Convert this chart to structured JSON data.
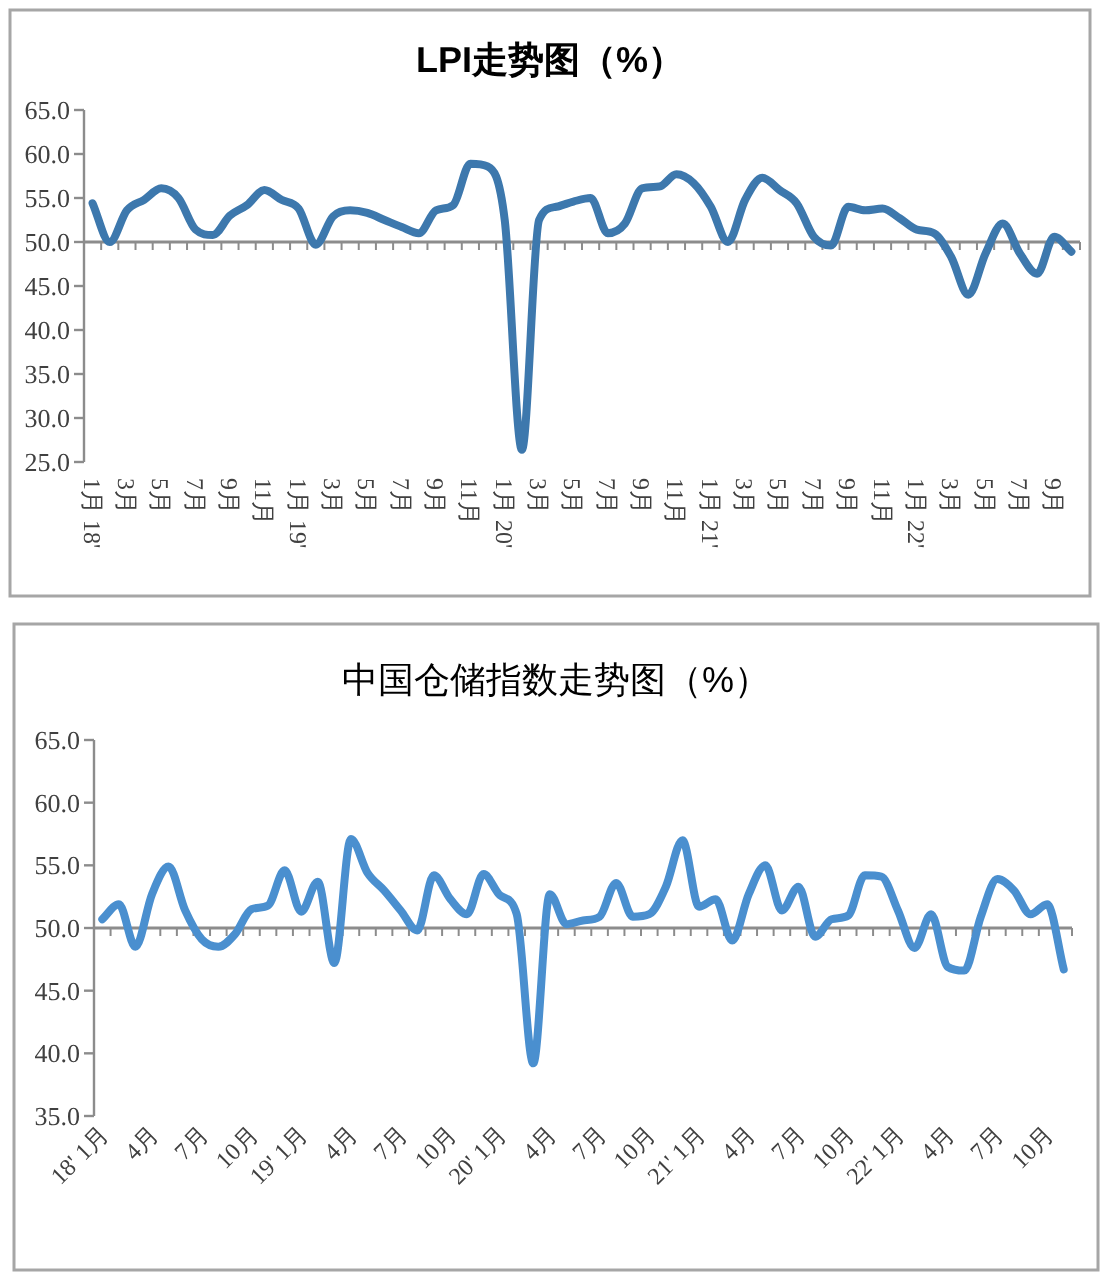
{
  "chart_data": [
    {
      "type": "line",
      "title": "LPI走势图（%）",
      "color": "#3d78ad",
      "line_style": "solid",
      "categories": [
        "1月 18'",
        null,
        "3月",
        null,
        "5月",
        null,
        "7月",
        null,
        "9月",
        null,
        "11月",
        null,
        "1月 19'",
        null,
        "3月",
        null,
        "5月",
        null,
        "7月",
        null,
        "9月",
        null,
        "11月",
        null,
        "1月 20'",
        null,
        "3月",
        null,
        "5月",
        null,
        "7月",
        null,
        "9月",
        null,
        "11月",
        null,
        "1月 21'",
        null,
        "3月",
        null,
        "5月",
        null,
        "7月",
        null,
        "9月",
        null,
        "11月",
        null,
        "1月 22'",
        null,
        "3月",
        null,
        "5月",
        null,
        "7月",
        null,
        "9月",
        null
      ],
      "values": [
        54.4,
        50.0,
        53.6,
        54.8,
        56.1,
        55.0,
        51.4,
        50.8,
        53.0,
        54.2,
        55.9,
        54.8,
        53.8,
        49.7,
        52.9,
        53.6,
        53.3,
        52.5,
        51.7,
        51.0,
        53.6,
        54.2,
        58.9,
        58.6,
        52.5,
        26.4,
        52.5,
        54.0,
        54.6,
        55.0,
        51.0,
        52.1,
        56.1,
        56.3,
        57.7,
        56.7,
        54.0,
        50.0,
        54.8,
        57.3,
        55.9,
        54.4,
        50.6,
        49.6,
        54.0,
        53.6,
        53.8,
        52.7,
        51.4,
        51.0,
        48.3,
        44.0,
        48.7,
        52.1,
        48.7,
        46.4,
        50.6,
        48.9
      ],
      "ylim": [
        25,
        65
      ],
      "yticks": [
        {
          "value": 25,
          "label": "25.0"
        },
        {
          "value": 30,
          "label": "30.0"
        },
        {
          "value": 35,
          "label": "35.0"
        },
        {
          "value": 40,
          "label": "40.0"
        },
        {
          "value": 45,
          "label": "45.0"
        },
        {
          "value": 50,
          "label": "50.0"
        },
        {
          "value": 55,
          "label": "55.0"
        },
        {
          "value": 60,
          "label": "60.0"
        },
        {
          "value": 65,
          "label": "65.0"
        }
      ],
      "ref_lines": [
        {
          "axis": "y",
          "value": 50,
          "color": "#8c8c8c"
        }
      ]
    },
    {
      "type": "line",
      "title": "中国仓储指数走势图（%）",
      "color": "#4a8fcf",
      "line_style": "solid",
      "categories": [
        "18' 1月",
        null,
        null,
        "4月",
        null,
        null,
        "7月",
        null,
        null,
        "10月",
        null,
        null,
        "19' 1月",
        null,
        null,
        "4月",
        null,
        null,
        "7月",
        null,
        null,
        "10月",
        null,
        null,
        "20' 1月",
        null,
        null,
        "4月",
        null,
        null,
        "7月",
        null,
        null,
        "10月",
        null,
        null,
        "21' 1月",
        null,
        null,
        "4月",
        null,
        null,
        "7月",
        null,
        null,
        "10月",
        null,
        null,
        "22' 1月",
        null,
        null,
        "4月",
        null,
        null,
        "7月",
        null,
        null,
        "10月",
        null
      ],
      "values": [
        50.7,
        51.9,
        48.5,
        52.7,
        54.9,
        51.4,
        49.1,
        48.5,
        49.5,
        51.5,
        51.8,
        54.6,
        51.3,
        53.7,
        47.2,
        57.1,
        54.4,
        53.0,
        51.4,
        49.8,
        54.2,
        52.3,
        51.1,
        54.3,
        52.6,
        51.1,
        39.2,
        52.7,
        50.3,
        50.6,
        50.9,
        53.6,
        50.9,
        51.1,
        53.3,
        57.0,
        51.7,
        52.3,
        49.0,
        52.7,
        55.0,
        51.4,
        53.3,
        49.3,
        50.7,
        51.0,
        54.2,
        54.1,
        51.4,
        48.4,
        51.1,
        46.9,
        46.6,
        50.9,
        53.9,
        53.0,
        51.1,
        51.9,
        46.7
      ],
      "ylim": [
        35,
        65
      ],
      "yticks": [
        {
          "value": 35,
          "label": "35.0"
        },
        {
          "value": 40,
          "label": "40.0"
        },
        {
          "value": 45,
          "label": "45.0"
        },
        {
          "value": 50,
          "label": "50.0"
        },
        {
          "value": 55,
          "label": "55.0"
        },
        {
          "value": 60,
          "label": "60.0"
        },
        {
          "value": 65,
          "label": "65.0"
        }
      ],
      "ref_lines": [
        {
          "axis": "y",
          "value": 50,
          "color": "#8c8c8c"
        }
      ]
    }
  ]
}
